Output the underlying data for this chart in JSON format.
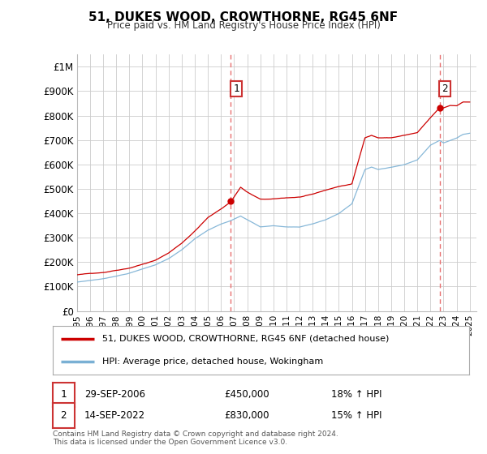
{
  "title": "51, DUKES WOOD, CROWTHORNE, RG45 6NF",
  "subtitle": "Price paid vs. HM Land Registry's House Price Index (HPI)",
  "red_label": "51, DUKES WOOD, CROWTHORNE, RG45 6NF (detached house)",
  "blue_label": "HPI: Average price, detached house, Wokingham",
  "annotation1_label": "1",
  "annotation1_date": "29-SEP-2006",
  "annotation1_price": "£450,000",
  "annotation1_hpi": "18% ↑ HPI",
  "annotation1_year": 2006.75,
  "annotation1_value": 450000,
  "annotation2_label": "2",
  "annotation2_date": "14-SEP-2022",
  "annotation2_price": "£830,000",
  "annotation2_hpi": "15% ↑ HPI",
  "annotation2_year": 2022.7,
  "annotation2_value": 830000,
  "vline1_x": 2006.75,
  "vline2_x": 2022.7,
  "footer": "Contains HM Land Registry data © Crown copyright and database right 2024.\nThis data is licensed under the Open Government Licence v3.0.",
  "ylim": [
    0,
    1050000
  ],
  "xlim": [
    1995,
    2025.5
  ],
  "background_color": "#ffffff",
  "grid_color": "#cccccc",
  "red_color": "#cc0000",
  "blue_color": "#7ab0d4",
  "vline_color": "#e87070",
  "yticks": [
    0,
    100000,
    200000,
    300000,
    400000,
    500000,
    600000,
    700000,
    800000,
    900000,
    1000000
  ],
  "ytick_labels": [
    "£0",
    "£100K",
    "£200K",
    "£300K",
    "£400K",
    "£500K",
    "£600K",
    "£700K",
    "£800K",
    "£900K",
    "£1M"
  ],
  "xtick_years": [
    1995,
    1996,
    1997,
    1998,
    1999,
    2000,
    2001,
    2002,
    2003,
    2004,
    2005,
    2006,
    2007,
    2008,
    2009,
    2010,
    2011,
    2012,
    2013,
    2014,
    2015,
    2016,
    2017,
    2018,
    2019,
    2020,
    2021,
    2022,
    2023,
    2024,
    2025
  ]
}
